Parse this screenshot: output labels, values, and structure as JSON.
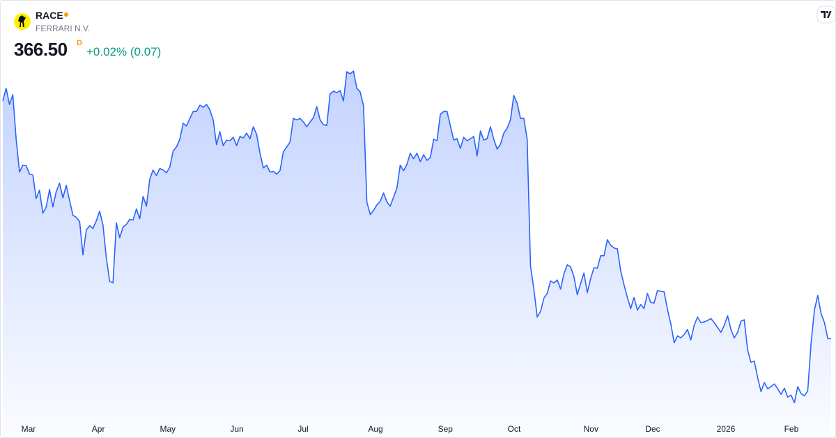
{
  "header": {
    "symbol": "RACE",
    "name": "FERRARI N.V.",
    "price": "366.50",
    "price_suffix": "D",
    "change": "+0.02% (0.07)"
  },
  "chart_data": {
    "type": "area",
    "color": "#2962ff",
    "values": [
      494.0,
      500.8,
      492.2,
      497.4,
      473.5,
      455.9,
      459.6,
      459.3,
      454.8,
      454.4,
      441.7,
      446.2,
      433.8,
      437.2,
      446.5,
      437.2,
      445.4,
      449.9,
      442.0,
      448.8,
      440.6,
      432.7,
      431.6,
      429.3,
      411.4,
      424.8,
      427.1,
      425.6,
      429.7,
      434.9,
      427.5,
      409.9,
      397.2,
      396.4,
      428.6,
      420.7,
      426.3,
      427.8,
      430.5,
      430.1,
      436.1,
      430.8,
      442.8,
      437.6,
      452.1,
      457.0,
      454.0,
      457.8,
      457.0,
      455.5,
      458.5,
      467.1,
      469.4,
      473.5,
      482.1,
      480.6,
      484.7,
      488.4,
      488.4,
      491.8,
      490.7,
      492.2,
      489.2,
      483.9,
      470.5,
      477.6,
      470.1,
      473.1,
      472.7,
      474.6,
      470.1,
      475.0,
      474.2,
      476.8,
      473.8,
      480.2,
      476.1,
      466.0,
      458.1,
      459.6,
      455.9,
      456.3,
      454.8,
      456.6,
      466.7,
      469.4,
      472.0,
      484.7,
      483.9,
      484.7,
      482.8,
      480.2,
      482.8,
      485.1,
      491.0,
      483.9,
      481.3,
      480.9,
      497.8,
      499.3,
      498.5,
      499.6,
      494.0,
      509.7,
      508.6,
      510.1,
      500.8,
      498.9,
      491.4,
      439.8,
      433.1,
      435.3,
      438.3,
      440.2,
      444.7,
      439.8,
      437.6,
      442.4,
      447.3,
      459.6,
      456.6,
      460.0,
      466.0,
      463.0,
      466.0,
      461.5,
      465.2,
      462.2,
      463.7,
      473.5,
      472.7,
      486.9,
      488.4,
      488.4,
      480.9,
      473.1,
      473.8,
      468.6,
      474.6,
      472.7,
      473.8,
      475.0,
      464.5,
      478.0,
      473.1,
      473.8,
      480.2,
      473.5,
      468.2,
      470.8,
      476.8,
      479.4,
      483.9,
      497.0,
      492.9,
      484.7,
      484.7,
      473.5,
      405.4,
      393.1,
      378.1,
      381.1,
      388.2,
      390.8,
      397.5,
      396.4,
      397.9,
      393.1,
      401.3,
      406.1,
      405.0,
      399.8,
      390.1,
      396.0,
      401.7,
      391.2,
      398.7,
      404.6,
      404.3,
      411.0,
      411.0,
      419.6,
      416.6,
      415.1,
      414.7,
      402.8,
      395.3,
      388.6,
      382.6,
      388.6,
      381.8,
      384.8,
      382.6,
      390.8,
      385.9,
      385.6,
      392.3,
      391.9,
      391.6,
      382.2,
      374.4,
      364.3,
      368.0,
      366.9,
      368.7,
      371.4,
      365.8,
      373.6,
      378.1,
      375.1,
      375.5,
      376.2,
      377.3,
      375.1,
      372.5,
      369.9,
      373.6,
      378.8,
      371.4,
      366.9,
      369.9,
      375.9,
      376.6,
      360.5,
      353.8,
      354.5,
      345.6,
      338.1,
      342.9,
      339.6,
      340.7,
      342.2,
      339.6,
      336.6,
      339.9,
      335.1,
      336.2,
      332.1,
      340.7,
      337.0,
      335.8,
      338.4,
      363.9,
      381.8,
      389.7,
      380.0,
      375.1,
      366.5,
      366.5
    ],
    "ylim": [
      324,
      518
    ],
    "xticks": [
      {
        "value": 7.7,
        "label": "Mar"
      },
      {
        "value": 28.6,
        "label": "Apr"
      },
      {
        "value": 49.4,
        "label": "May"
      },
      {
        "value": 70.1,
        "label": "Jun"
      },
      {
        "value": 89.9,
        "label": "Jul"
      },
      {
        "value": 111.6,
        "label": "Aug"
      },
      {
        "value": 132.5,
        "label": "Sep"
      },
      {
        "value": 153.1,
        "label": "Oct"
      },
      {
        "value": 176.1,
        "label": "Nov"
      },
      {
        "value": 194.6,
        "label": "Dec"
      },
      {
        "value": 216.5,
        "label": "2026"
      },
      {
        "value": 236.1,
        "label": "Feb"
      }
    ]
  }
}
